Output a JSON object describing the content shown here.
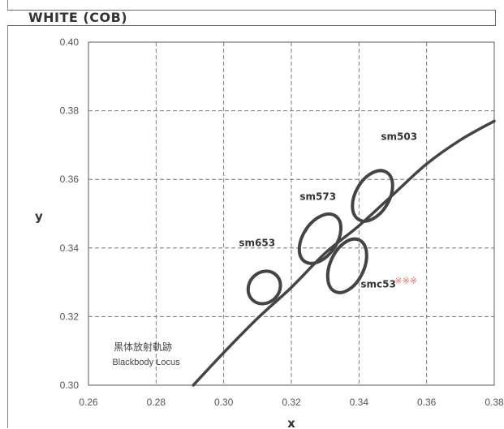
{
  "chart_data": {
    "type": "scatter",
    "title": "WHITE (COB)",
    "xlabel": "x",
    "ylabel": "y",
    "xlim": [
      0.26,
      0.38
    ],
    "ylim": [
      0.3,
      0.4
    ],
    "x_ticks": [
      "0.26",
      "0.28",
      "0.30",
      "0.32",
      "0.34",
      "0.36",
      "0.38"
    ],
    "y_ticks": [
      "0.30",
      "0.32",
      "0.34",
      "0.36",
      "0.38",
      "0.40"
    ],
    "grid": true,
    "locus": {
      "label_jp": "黒体放射軌跡",
      "label_en": "Blackbody Locus",
      "points": [
        [
          0.291,
          0.3
        ],
        [
          0.3,
          0.3095
        ],
        [
          0.31,
          0.3195
        ],
        [
          0.32,
          0.3285
        ],
        [
          0.33,
          0.3385
        ],
        [
          0.34,
          0.3465
        ],
        [
          0.35,
          0.3555
        ],
        [
          0.36,
          0.3645
        ],
        [
          0.37,
          0.3715
        ],
        [
          0.38,
          0.377
        ]
      ]
    },
    "ellipses": [
      {
        "name": "sm653",
        "cx": 0.312,
        "cy": 0.3285,
        "rx": 0.0045,
        "ry": 0.005,
        "angle_deg": 43
      },
      {
        "name": "sm573",
        "cx": 0.3285,
        "cy": 0.3427,
        "rx": 0.005,
        "ry": 0.008,
        "angle_deg": 34
      },
      {
        "name": "sm503",
        "cx": 0.344,
        "cy": 0.3552,
        "rx": 0.005,
        "ry": 0.008,
        "angle_deg": 30
      },
      {
        "name": "smc53",
        "cx": 0.3365,
        "cy": 0.3348,
        "rx": 0.005,
        "ry": 0.0083,
        "angle_deg": 25,
        "mark": "※※※"
      }
    ],
    "annotations": [
      {
        "text": "sm653",
        "x": 0.3045,
        "y": 0.3405
      },
      {
        "text": "sm573",
        "x": 0.3225,
        "y": 0.354
      },
      {
        "text": "sm503",
        "x": 0.3465,
        "y": 0.3715
      },
      {
        "text": "smc53",
        "x": 0.3405,
        "y": 0.3285
      }
    ]
  }
}
